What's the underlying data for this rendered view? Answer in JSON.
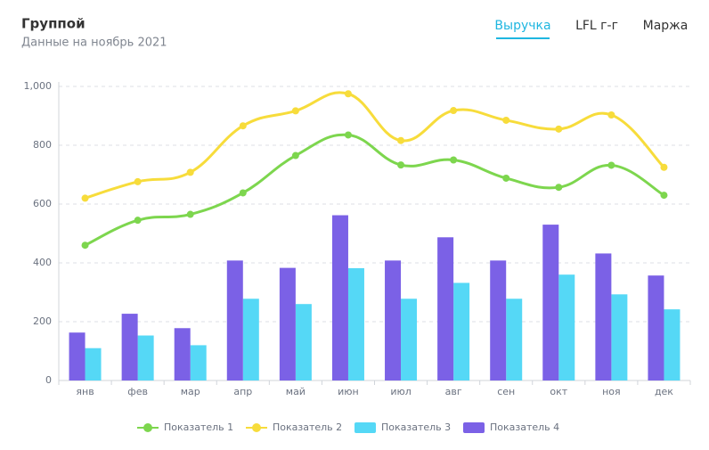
{
  "tabs": [
    "Выручка",
    "LFL г-г",
    "Маржа"
  ],
  "chart_data": {
    "type": "bar-line",
    "title": "Группой",
    "subtitle": "Данные на ноябрь 2021",
    "categories": [
      "янв",
      "фев",
      "мар",
      "апр",
      "май",
      "июн",
      "июл",
      "авг",
      "сен",
      "окт",
      "ноя",
      "дек"
    ],
    "series": [
      {
        "name": "Показатель 1",
        "kind": "line",
        "color": "#7dd64e",
        "values": [
          460,
          545,
          565,
          638,
          765,
          835,
          733,
          750,
          688,
          657,
          732,
          630
        ]
      },
      {
        "name": "Показатель 2",
        "kind": "line",
        "color": "#f7dc3b",
        "values": [
          620,
          676,
          708,
          866,
          917,
          975,
          816,
          918,
          885,
          855,
          903,
          725
        ]
      },
      {
        "name": "Показатель 3",
        "kind": "bar",
        "color": "#55d8f6",
        "values": [
          110,
          153,
          120,
          278,
          260,
          382,
          278,
          332,
          278,
          360,
          293,
          242
        ]
      },
      {
        "name": "Показатель 4",
        "kind": "bar",
        "color": "#7b61e6",
        "values": [
          163,
          227,
          178,
          408,
          383,
          562,
          408,
          487,
          408,
          530,
          432,
          357
        ]
      }
    ],
    "ylim": [
      0,
      1000
    ],
    "yticks": [
      0,
      200,
      400,
      600,
      800,
      {
        "value": 1000,
        "label": "1,000"
      }
    ],
    "grid": true
  }
}
